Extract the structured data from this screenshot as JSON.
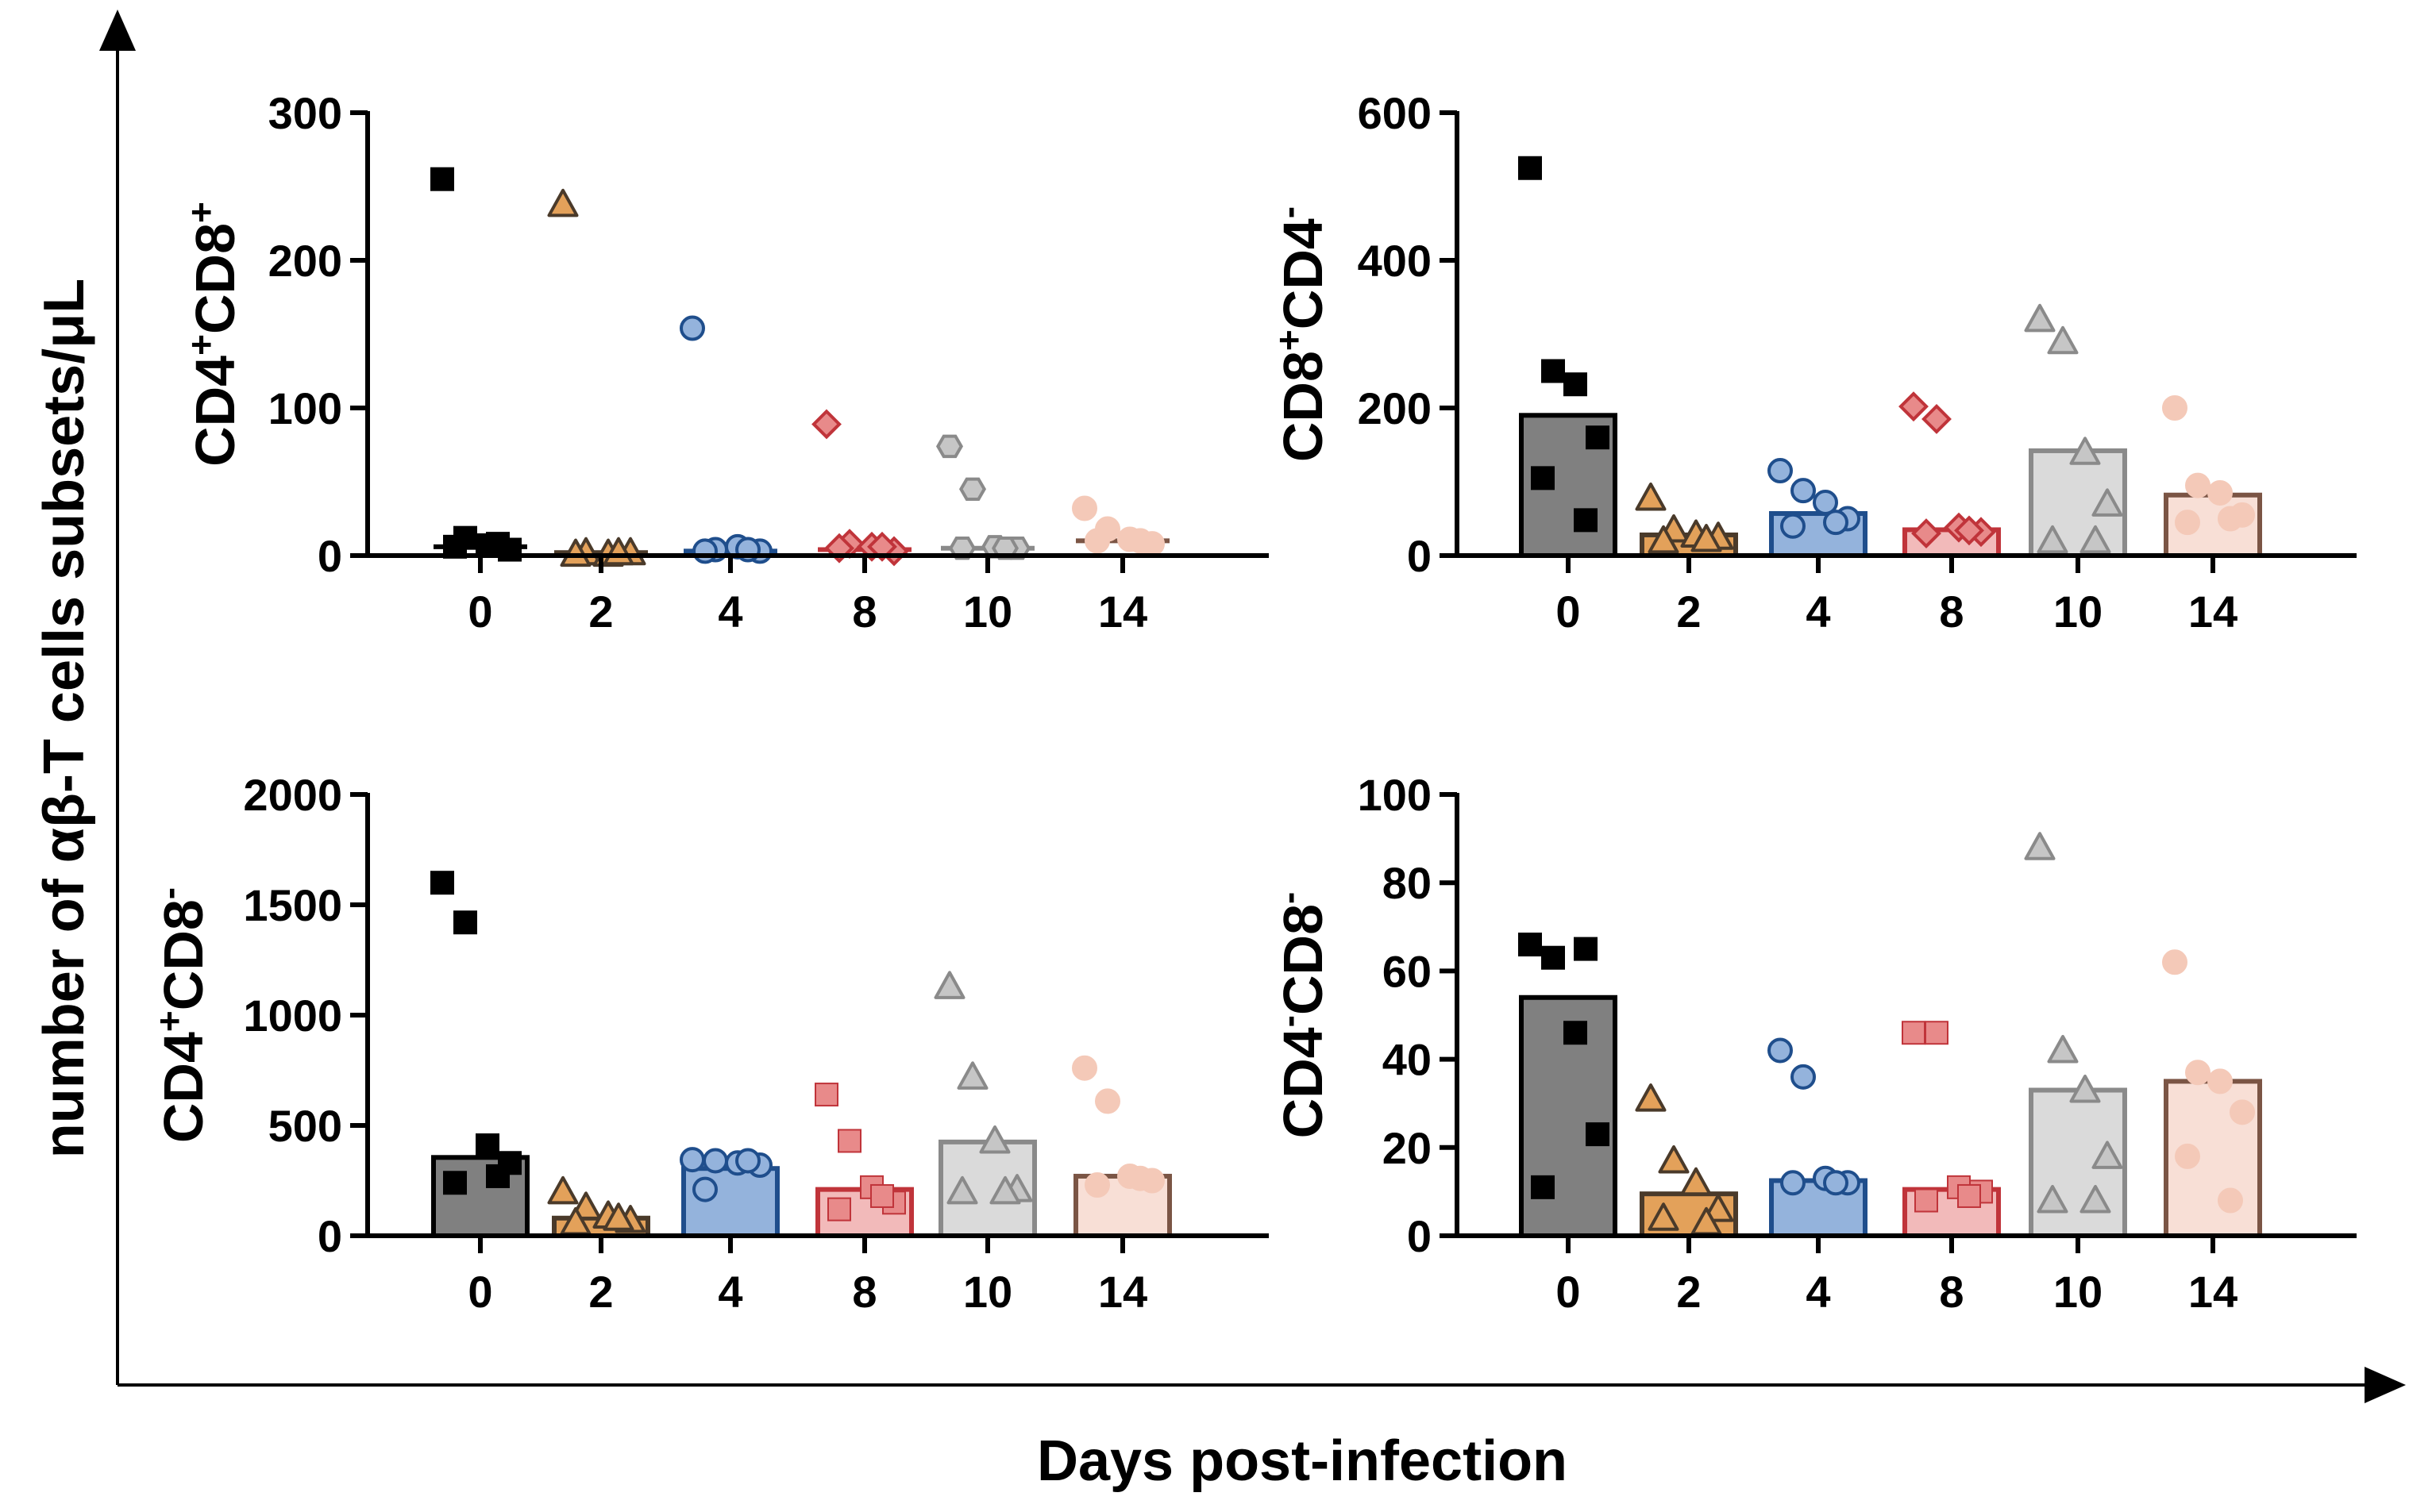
{
  "figure": {
    "y_title": "number of αβ-T cells subsets/μL",
    "x_title": "Days post-infection"
  },
  "groups": [
    {
      "day": "0",
      "color": "#808080",
      "stroke": "#000000",
      "marker": "square",
      "point_fill": "#000000",
      "point_stroke": "#000000"
    },
    {
      "day": "2",
      "color": "#E3A15A",
      "stroke": "#4A3A2A",
      "marker": "triangle",
      "point_fill": "#E3A15A",
      "point_stroke": "#4A3A2A"
    },
    {
      "day": "4",
      "color": "#94B3DC",
      "stroke": "#1F4E8C",
      "marker": "circle",
      "point_fill": "#94B3DC",
      "point_stroke": "#1F4E8C"
    },
    {
      "day": "8",
      "color": "#F2BABA",
      "stroke": "#C0343A",
      "marker": "diamond",
      "point_fill": "#E88A8A",
      "point_stroke": "#C0343A"
    },
    {
      "day": "10",
      "color": "#DADADA",
      "stroke": "#8A8A8A",
      "marker": "triangle",
      "point_fill": "#C6C6C6",
      "point_stroke": "#8A8A8A"
    },
    {
      "day": "14",
      "color": "#F8DFD6",
      "stroke": "#7B5545",
      "marker": "circle",
      "point_fill": "#F4C9B8",
      "point_stroke": "#F4C9B8"
    }
  ],
  "chart_data": [
    {
      "type": "bar",
      "title": "CD4+CD8+",
      "ylabel_parts": [
        {
          "t": "CD4",
          "sup": false
        },
        {
          "t": "+",
          "sup": true
        },
        {
          "t": "CD8",
          "sup": false
        },
        {
          "t": "+",
          "sup": true
        }
      ],
      "categories": [
        "0",
        "2",
        "4",
        "8",
        "10",
        "14"
      ],
      "ylim": [
        0,
        300
      ],
      "yticks": [
        "0",
        "100",
        "200",
        "300"
      ],
      "yticks_values": [
        0,
        100,
        200,
        300
      ],
      "bars": [
        6,
        2,
        3,
        4,
        5,
        10
      ],
      "bar_style": "line",
      "markers_override": [
        "square",
        "triangle",
        "circle",
        "diamond",
        "hexagon",
        "circle"
      ],
      "points": [
        [
          255,
          12,
          7,
          4,
          6,
          8
        ],
        [
          238,
          2,
          1,
          2,
          1,
          2
        ],
        [
          154,
          4,
          6,
          3,
          3,
          4
        ],
        [
          89,
          8,
          6,
          3,
          5,
          6
        ],
        [
          74,
          45,
          6,
          5,
          5,
          5
        ],
        [
          32,
          18,
          11,
          8,
          10,
          10
        ]
      ]
    },
    {
      "type": "bar",
      "title": "CD8+CD4-",
      "ylabel_parts": [
        {
          "t": "CD8",
          "sup": false
        },
        {
          "t": "+",
          "sup": true
        },
        {
          "t": "CD4",
          "sup": false
        },
        {
          "t": "-",
          "sup": true
        }
      ],
      "categories": [
        "0",
        "2",
        "4",
        "8",
        "10",
        "14"
      ],
      "ylim": [
        0,
        600
      ],
      "yticks": [
        "0",
        "200",
        "400",
        "600"
      ],
      "yticks_values": [
        0,
        200,
        400,
        600
      ],
      "bars": [
        190,
        28,
        57,
        35,
        142,
        82
      ],
      "bar_style": "fill",
      "markers_override": [
        "square",
        "triangle",
        "circle",
        "diamond",
        "triangle",
        "circle"
      ],
      "points": [
        [
          525,
          250,
          232,
          160,
          105,
          48
        ],
        [
          78,
          35,
          28,
          25,
          20,
          22
        ],
        [
          115,
          88,
          72,
          50,
          40,
          45
        ],
        [
          202,
          185,
          38,
          32,
          30,
          34
        ],
        [
          320,
          290,
          140,
          70,
          20,
          20
        ],
        [
          200,
          95,
          85,
          55,
          45,
          50
        ]
      ]
    },
    {
      "type": "bar",
      "title": "CD4+CD8-",
      "ylabel_parts": [
        {
          "t": "CD4",
          "sup": false
        },
        {
          "t": "+",
          "sup": true
        },
        {
          "t": "CD8",
          "sup": false
        },
        {
          "t": "-",
          "sup": true
        }
      ],
      "categories": [
        "0",
        "2",
        "4",
        "8",
        "10",
        "14"
      ],
      "ylim": [
        0,
        2000
      ],
      "yticks": [
        "0",
        "500",
        "1000",
        "1500",
        "2000"
      ],
      "yticks_values": [
        0,
        500,
        1000,
        1500,
        2000
      ],
      "bars": [
        355,
        80,
        305,
        210,
        425,
        270
      ],
      "bar_style": "fill",
      "markers_override": [
        "square",
        "triangle",
        "circle",
        "square",
        "triangle",
        "circle"
      ],
      "points": [
        [
          1600,
          1420,
          410,
          330,
          240,
          270
        ],
        [
          200,
          130,
          90,
          70,
          60,
          80
        ],
        [
          345,
          340,
          330,
          320,
          210,
          340
        ],
        [
          640,
          430,
          220,
          150,
          120,
          180
        ],
        [
          1130,
          720,
          430,
          210,
          200,
          200
        ],
        [
          760,
          610,
          270,
          250,
          230,
          260
        ]
      ]
    },
    {
      "type": "bar",
      "title": "CD4-CD8-",
      "ylabel_parts": [
        {
          "t": "CD4",
          "sup": false
        },
        {
          "t": "-",
          "sup": true
        },
        {
          "t": "CD8",
          "sup": false
        },
        {
          "t": "-",
          "sup": true
        }
      ],
      "categories": [
        "0",
        "2",
        "4",
        "8",
        "10",
        "14"
      ],
      "ylim": [
        0,
        100
      ],
      "yticks": [
        "0",
        "20",
        "40",
        "60",
        "80",
        "100"
      ],
      "yticks_values": [
        0,
        20,
        40,
        60,
        80,
        100
      ],
      "bars": [
        54,
        9.5,
        12.5,
        10.5,
        33,
        35
      ],
      "bar_style": "fill",
      "markers_override": [
        "square",
        "triangle",
        "circle",
        "square",
        "triangle",
        "circle"
      ],
      "points": [
        [
          66,
          63,
          46,
          23,
          11,
          65
        ],
        [
          31,
          17,
          12,
          6,
          4,
          3
        ],
        [
          42,
          36,
          13,
          12,
          12,
          12
        ],
        [
          46,
          46,
          11,
          10,
          8,
          9
        ],
        [
          88,
          42,
          33,
          18,
          8,
          8
        ],
        [
          62,
          37,
          35,
          28,
          18,
          8
        ]
      ]
    }
  ]
}
